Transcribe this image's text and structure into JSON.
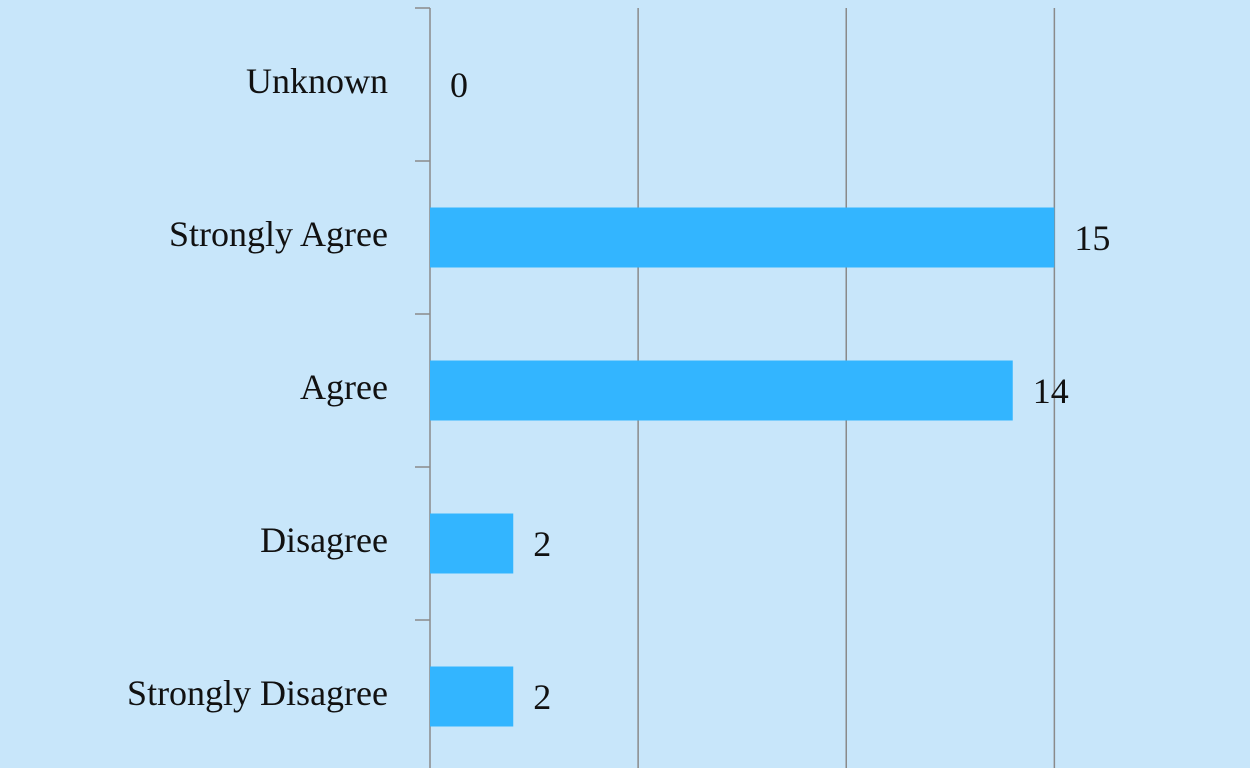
{
  "chart_data": {
    "type": "barh",
    "categories": [
      "Unknown",
      "Strongly Agree",
      "Agree",
      "Disagree",
      "Strongly Disagree"
    ],
    "values": [
      0,
      15,
      14,
      2,
      2
    ],
    "color": "#33b5ff",
    "xlim": [
      0,
      19.7
    ],
    "xticks": [
      0,
      5,
      10,
      15
    ],
    "tick_labels": false,
    "grid": true
  }
}
